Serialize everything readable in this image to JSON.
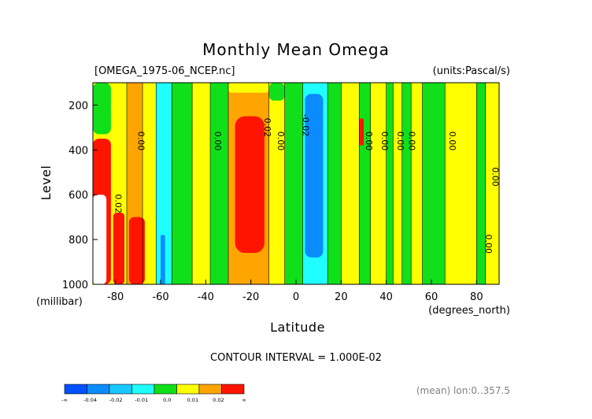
{
  "chart_data": {
    "type": "heatmap",
    "title": "Monthly Mean Omega",
    "file_label": "[OMEGA_1975-06_NCEP.nc]",
    "units_label": "(units:Pascal/s)",
    "xlabel": "Latitude",
    "x_units": "(degrees_north)",
    "ylabel": "Level",
    "y_units": "(millibar)",
    "xlim": [
      -90,
      90
    ],
    "ylim": [
      1000,
      100
    ],
    "x_ticks": [
      -80,
      -60,
      -40,
      -20,
      0,
      20,
      40,
      60,
      80
    ],
    "x_tick_labels": [
      "-80",
      "-60",
      "-40",
      "-20",
      "0",
      "20",
      "40",
      "60",
      "80"
    ],
    "y_ticks": [
      200,
      400,
      600,
      800,
      1000
    ],
    "y_tick_labels": [
      "200",
      "400",
      "600",
      "800",
      "1000"
    ],
    "contour_interval_text": "CONTOUR INTERVAL = 1.000E-02",
    "footer_text": "(mean) lon:0..357.5",
    "colorbar": {
      "bins": [
        {
          "color": "#0050ff"
        },
        {
          "color": "#0a8cff"
        },
        {
          "color": "#19c8ff"
        },
        {
          "color": "#20ffff"
        },
        {
          "color": "#10e01a"
        },
        {
          "color": "#ffff00"
        },
        {
          "color": "#ffa500"
        },
        {
          "color": "#ff1400"
        }
      ],
      "labels": [
        "-∞",
        "-0.04",
        "-0.02",
        "-0.01",
        "0.0",
        "0.01",
        "0.02",
        "∞"
      ]
    },
    "bands": [
      {
        "lat": -90,
        "color": "#ffff00"
      },
      {
        "lat": -75,
        "color": "#ffa500"
      },
      {
        "lat": -68,
        "color": "#ffff00"
      },
      {
        "lat": -62,
        "color": "#20ffff"
      },
      {
        "lat": -55,
        "color": "#10e01a"
      },
      {
        "lat": -46,
        "color": "#ffff00"
      },
      {
        "lat": -38,
        "color": "#10e01a"
      },
      {
        "lat": -30,
        "color": "#ffa500"
      },
      {
        "lat": -12,
        "color": "#ffff00"
      },
      {
        "lat": -5,
        "color": "#10e01a"
      },
      {
        "lat": 3,
        "color": "#20ffff"
      },
      {
        "lat": 14,
        "color": "#10e01a"
      },
      {
        "lat": 20,
        "color": "#ffff00"
      },
      {
        "lat": 28,
        "color": "#10e01a"
      },
      {
        "lat": 33,
        "color": "#ffff00"
      },
      {
        "lat": 40,
        "color": "#10e01a"
      },
      {
        "lat": 43,
        "color": "#ffff00"
      },
      {
        "lat": 47,
        "color": "#10e01a"
      },
      {
        "lat": 51,
        "color": "#ffff00"
      },
      {
        "lat": 56,
        "color": "#10e01a"
      },
      {
        "lat": 66,
        "color": "#ffff00"
      },
      {
        "lat": 80,
        "color": "#10e01a"
      },
      {
        "lat": 84,
        "color": "#ffff00"
      },
      {
        "lat": 90
      }
    ],
    "features": [
      {
        "color": "#10e01a",
        "lat": [
          -90,
          -82
        ],
        "lev": [
          100,
          330
        ]
      },
      {
        "color": "#ffff00",
        "lat": [
          -30,
          -12
        ],
        "lev": [
          100,
          145
        ]
      },
      {
        "color": "#10e01a",
        "lat": [
          -12,
          -5
        ],
        "lev": [
          100,
          180
        ]
      },
      {
        "color": "#ff1400",
        "lat": [
          -90,
          -82
        ],
        "lev": [
          350,
          1000
        ]
      },
      {
        "color": "#ffffff",
        "lat": [
          -90,
          -84
        ],
        "lev": [
          600,
          1000
        ]
      },
      {
        "color": "#ff1400",
        "lat": [
          -81,
          -76
        ],
        "lev": [
          680,
          1000
        ]
      },
      {
        "color": "#ff1400",
        "lat": [
          -74,
          -67
        ],
        "lev": [
          700,
          1000
        ]
      },
      {
        "color": "#0a8cff",
        "lat": [
          -60,
          -58
        ],
        "lev": [
          780,
          1000
        ]
      },
      {
        "color": "#ff1400",
        "lat": [
          -27,
          -14
        ],
        "lev": [
          250,
          860
        ]
      },
      {
        "color": "#0a8cff",
        "lat": [
          4,
          12
        ],
        "lev": [
          150,
          880
        ]
      },
      {
        "color": "#ff1400",
        "lat": [
          28,
          30
        ],
        "lev": [
          260,
          380
        ]
      }
    ],
    "contour_labels": [
      {
        "text": "0.00",
        "lat": -70,
        "lev": 360
      },
      {
        "text": "0.02",
        "lat": -80,
        "lev": 640
      },
      {
        "text": "0.00",
        "lat": -36,
        "lev": 360
      },
      {
        "text": "0.02",
        "lat": -14,
        "lev": 300
      },
      {
        "text": "0.00",
        "lat": -8,
        "lev": 360
      },
      {
        "text": "-0.02",
        "lat": 3,
        "lev": 290
      },
      {
        "text": "0.00",
        "lat": 31,
        "lev": 360
      },
      {
        "text": "0.00",
        "lat": 38,
        "lev": 360
      },
      {
        "text": "0.00",
        "lat": 45,
        "lev": 360
      },
      {
        "text": "0.00",
        "lat": 50,
        "lev": 360
      },
      {
        "text": "0.00",
        "lat": 68,
        "lev": 360
      },
      {
        "text": "0.00",
        "lat": 84,
        "lev": 820
      },
      {
        "text": "0.00",
        "lat": 87,
        "lev": 520
      }
    ],
    "grid": false,
    "legend_position": "bottom-left"
  }
}
